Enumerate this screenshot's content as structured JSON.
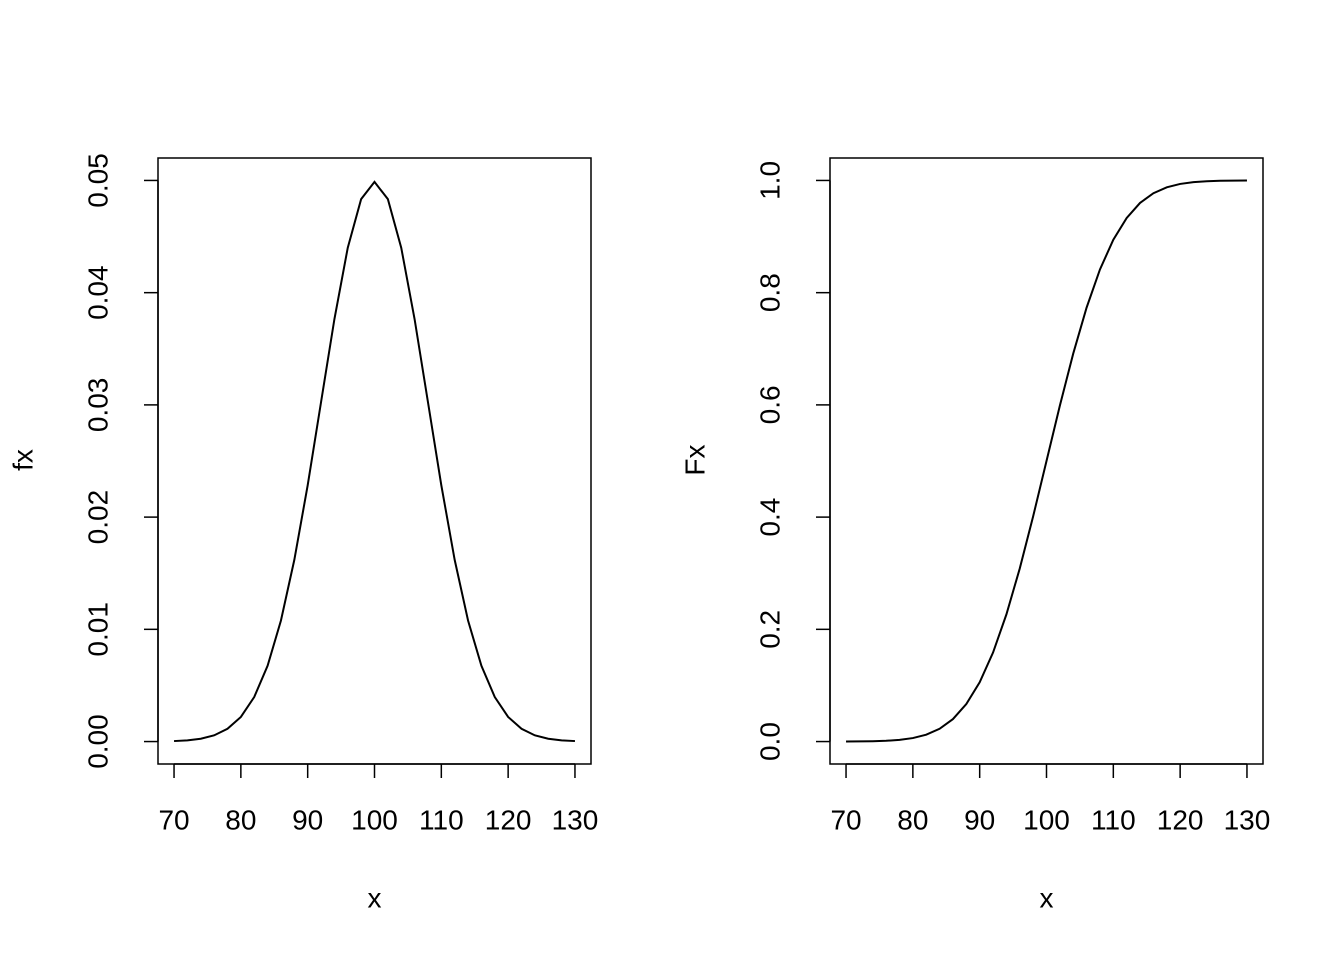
{
  "chart_data": [
    {
      "type": "line",
      "xlabel": "x",
      "ylabel": "fx",
      "x": [
        70,
        72,
        74,
        76,
        78,
        80,
        82,
        84,
        86,
        88,
        90,
        92,
        94,
        96,
        98,
        100,
        102,
        104,
        106,
        108,
        110,
        112,
        114,
        116,
        118,
        120,
        122,
        124,
        126,
        128,
        130
      ],
      "values": [
        4.4e-05,
        0.000109,
        0.000254,
        0.000554,
        0.001137,
        0.002191,
        0.003967,
        0.006749,
        0.010785,
        0.01619,
        0.022831,
        0.030246,
        0.037642,
        0.044008,
        0.048334,
        0.049868,
        0.048334,
        0.044008,
        0.037642,
        0.030246,
        0.022831,
        0.01619,
        0.010785,
        0.006749,
        0.003967,
        0.002191,
        0.001137,
        0.000554,
        0.000254,
        0.000109,
        4.4e-05
      ],
      "color": "#000000",
      "xlim": [
        67.6,
        132.4
      ],
      "ylim": [
        -0.002,
        0.052
      ],
      "xticks": [
        70,
        80,
        90,
        100,
        110,
        120,
        130
      ],
      "yticks": [
        {
          "value": 0,
          "label": "0.00"
        },
        0.01,
        0.02,
        0.03,
        0.04,
        0.05
      ]
    },
    {
      "type": "line",
      "xlabel": "x",
      "ylabel": "Fx",
      "x": [
        70,
        72,
        74,
        76,
        78,
        80,
        82,
        84,
        86,
        88,
        90,
        92,
        94,
        96,
        98,
        100,
        102,
        104,
        106,
        108,
        110,
        112,
        114,
        116,
        118,
        120,
        122,
        124,
        126,
        128,
        130
      ],
      "values": [
        8.84e-05,
        0.000233,
        0.000577,
        0.00135,
        0.00298,
        0.00621,
        0.01222,
        0.02275,
        0.04006,
        0.06681,
        0.10565,
        0.15866,
        0.22663,
        0.30854,
        0.40129,
        0.5,
        0.59871,
        0.69146,
        0.77337,
        0.84134,
        0.89435,
        0.93319,
        0.95994,
        0.97725,
        0.98778,
        0.99379,
        0.99702,
        0.99865,
        0.999423,
        0.999767,
        0.9999116
      ],
      "color": "#000000",
      "xlim": [
        67.6,
        132.4
      ],
      "ylim": [
        -0.04,
        1.04
      ],
      "xticks": [
        70,
        80,
        90,
        100,
        110,
        120,
        130
      ],
      "yticks": [
        {
          "value": 0,
          "label": "0.0"
        },
        0.2,
        0.4,
        0.6,
        0.8,
        {
          "value": 1,
          "label": "1.0"
        }
      ]
    }
  ]
}
